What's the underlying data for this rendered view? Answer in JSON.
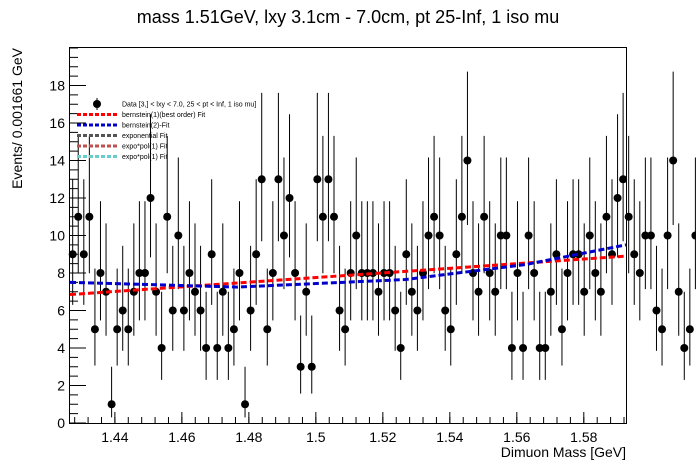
{
  "chart_data": {
    "type": "scatter",
    "title": "mass 1.51GeV, lxy 3.1cm - 7.0cm, pt 25-Inf, 1 iso mu",
    "xlabel": "Dimuon Mass [GeV]",
    "ylabel": "Events/ 0.001661 GeV",
    "xlim": [
      1.4266,
      1.5926
    ],
    "ylim": [
      0,
      20
    ],
    "x_ticks": [
      1.44,
      1.46,
      1.48,
      1.5,
      1.52,
      1.54,
      1.56,
      1.58
    ],
    "x_tick_labels": [
      "1.44",
      "1.46",
      "1.48",
      "1.5",
      "1.52",
      "1.54",
      "1.56",
      "1.58"
    ],
    "y_ticks": [
      0,
      2,
      4,
      6,
      8,
      10,
      12,
      14,
      16,
      18
    ],
    "y_tick_labels": [
      "0",
      "2",
      "4",
      "6",
      "8",
      "10",
      "12",
      "14",
      "16",
      "18"
    ],
    "grid": false,
    "legend_position": "top-left",
    "data_series": {
      "name": "Data [3,] < lxy < 7.0, 25 < pt < Inf, 1 iso mu]",
      "color": "#000000",
      "bin_width": 0.00166,
      "x_start": 1.4274,
      "values": [
        9,
        11,
        9,
        11,
        5,
        8,
        7,
        1,
        5,
        6,
        5,
        7,
        8,
        8,
        12,
        7,
        4,
        11,
        6,
        10,
        6,
        8,
        7,
        6,
        4,
        9,
        4,
        7,
        4,
        5,
        8,
        1,
        6,
        9,
        13,
        5,
        8,
        13,
        10,
        12,
        8,
        3,
        7,
        3,
        13,
        11,
        13,
        11,
        6,
        5,
        8,
        10,
        8,
        8,
        8,
        7,
        8,
        8,
        6,
        4,
        9,
        7,
        6,
        8,
        10,
        11,
        10,
        6,
        5,
        9,
        11,
        14,
        8,
        7,
        11,
        8,
        7,
        10,
        10,
        4,
        8,
        4,
        10,
        8,
        4,
        4,
        7,
        9,
        5,
        8,
        9,
        9,
        7,
        10,
        8,
        7,
        11,
        9,
        12,
        13,
        11,
        9,
        8,
        10,
        10,
        6,
        5,
        10,
        14,
        7,
        4,
        5,
        10,
        12,
        11,
        9,
        12,
        13,
        10,
        11,
        10,
        7
      ]
    },
    "fit_lines": [
      {
        "name": "bernstein(1)(best order) Fit",
        "color": "#ff0000",
        "x": [
          1.4266,
          1.5926
        ],
        "y": [
          6.85,
          8.9
        ]
      },
      {
        "name": "bernstein(2)-Fit",
        "color": "#0000cc",
        "x": [
          1.4266,
          1.4766,
          1.5266,
          1.5626,
          1.5926
        ],
        "y": [
          7.5,
          7.25,
          7.65,
          8.45,
          9.5
        ]
      },
      {
        "name": "exponential Fit",
        "color": "#555555",
        "x": [],
        "y": []
      },
      {
        "name": "expo*pol(1) Fit",
        "color": "#c0504d",
        "x": [],
        "y": []
      },
      {
        "name": "expo*pol(1) Fit",
        "color": "#66cccc",
        "x": [],
        "y": []
      }
    ]
  }
}
